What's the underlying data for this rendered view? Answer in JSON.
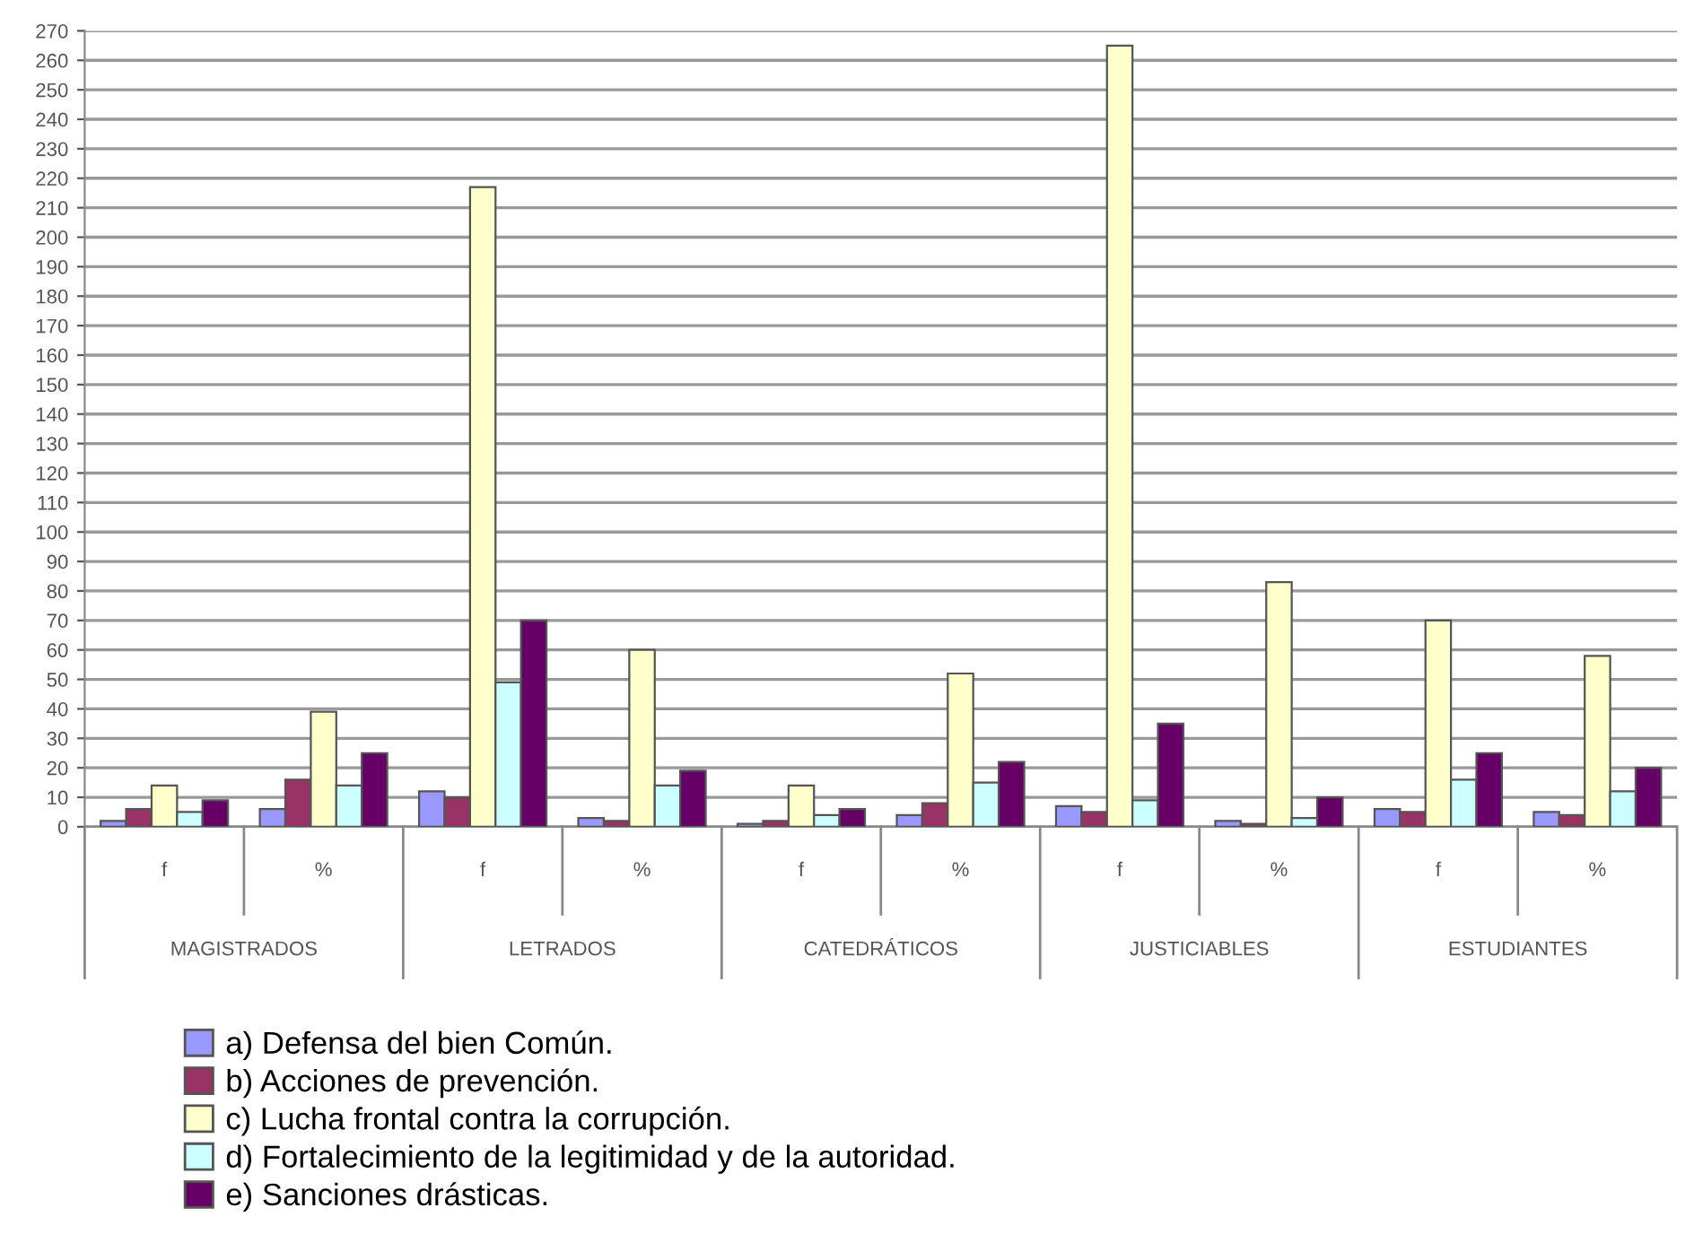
{
  "chart_data": {
    "type": "bar",
    "categories": [
      "f",
      "%",
      "f",
      "%",
      "f",
      "%",
      "f",
      "%",
      "f",
      "%"
    ],
    "annotations": [
      "MAGISTRADOS",
      "LETRADOS",
      "CATEDRÁTICOS",
      "JUSTICIABLES",
      "ESTUDIANTES"
    ],
    "series": [
      {
        "name": "a) Defensa del bien Común.",
        "color": "#9999ff",
        "values": [
          2,
          6,
          12,
          3,
          1,
          4,
          7,
          2,
          6,
          5
        ]
      },
      {
        "name": "b) Acciones de prevención.",
        "color": "#993366",
        "values": [
          6,
          16,
          10,
          2,
          2,
          8,
          5,
          1,
          5,
          4
        ]
      },
      {
        "name": "c) Lucha frontal contra la corrupción.",
        "color": "#ffffcc",
        "values": [
          14,
          39,
          217,
          60,
          14,
          52,
          265,
          83,
          70,
          58
        ]
      },
      {
        "name": "d) Fortalecimiento de la legitimidad y de la autoridad.",
        "color": "#ccffff",
        "values": [
          5,
          14,
          49,
          14,
          4,
          15,
          9,
          3,
          16,
          12
        ]
      },
      {
        "name": "e) Sanciones drásticas.",
        "color": "#660066",
        "values": [
          9,
          25,
          70,
          19,
          6,
          22,
          35,
          10,
          25,
          20
        ]
      }
    ],
    "ylim": [
      0,
      270
    ],
    "yticks": [
      0,
      10,
      20,
      30,
      40,
      50,
      60,
      70,
      80,
      90,
      100,
      110,
      120,
      130,
      140,
      150,
      160,
      170,
      180,
      190,
      200,
      210,
      220,
      230,
      240,
      250,
      260,
      270
    ],
    "grid": "y",
    "legend": "bottom"
  }
}
